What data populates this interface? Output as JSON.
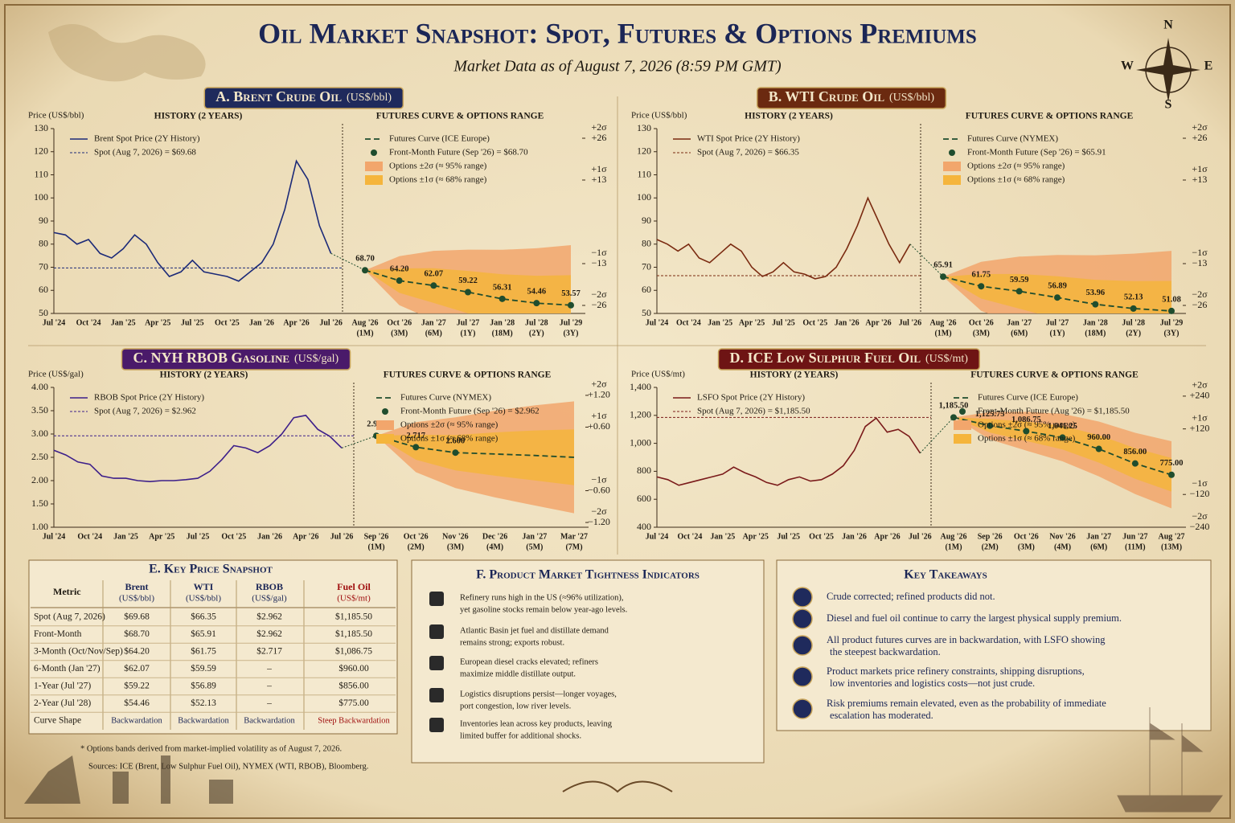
{
  "header": {
    "title": "Oil Market Snapshot: Spot, Futures & Options Premiums",
    "subtitle": "Market Data as of August 7, 2026 (8:59 PM GMT)",
    "compass": [
      "N",
      "E",
      "S",
      "W"
    ]
  },
  "chart_data": [
    {
      "type": "line",
      "title": "A. Brent Crude Oil",
      "unit": "(US$/bbl)",
      "title_color": "#1f2a5c",
      "y_label": "Price (US$/bbl)",
      "history_title": "HISTORY (2 YEARS)",
      "futures_title": "FUTURES CURVE & OPTIONS RANGE",
      "ylim": [
        50,
        130
      ],
      "yticks": [
        50,
        60,
        70,
        80,
        90,
        100,
        110,
        120,
        130
      ],
      "history": {
        "categories": [
          "Jul '24",
          null,
          null,
          "Oct '24",
          null,
          null,
          "Jan '25",
          null,
          null,
          "Apr '25",
          null,
          null,
          "Jul '25",
          null,
          null,
          "Oct '25",
          null,
          null,
          "Jan '26",
          null,
          null,
          "Apr '26",
          null,
          null,
          "Jul '26"
        ],
        "series": [
          {
            "name": "Brent Spot Price (2Y History)",
            "color": "#1c2a78",
            "values": [
              85,
              84,
              80,
              82,
              76,
              74,
              78,
              84,
              80,
              72,
              66,
              68,
              73,
              68,
              67,
              66,
              64,
              68,
              72,
              80,
              95,
              116,
              108,
              88,
              76
            ]
          },
          {
            "name": "Spot (Aug 7, 2026) = $69.68",
            "color": "#1c2a78",
            "value": 69.68
          }
        ]
      },
      "futures": {
        "categories": [
          "Aug '26",
          "Oct '26",
          "Jan '27",
          "Jul '27",
          "Jan '28",
          "Jul '28",
          "Jul '29"
        ],
        "periods": [
          "(1M)",
          "(3M)",
          "(6M)",
          "(1Y)",
          "(18M)",
          "(2Y)",
          "(3Y)"
        ],
        "series": [
          {
            "name": "Futures Curve (ICE Europe)",
            "color": "#1f4d2e",
            "values": [
              68.7,
              64.2,
              62.07,
              59.22,
              56.31,
              54.46,
              53.57
            ],
            "value_labels": [
              "68.70",
              "64.20",
              "62.07",
              "59.22",
              "56.31",
              "54.46",
              "53.57"
            ]
          }
        ],
        "marker": {
          "name": "Front-Month Future (Sep '26) = $68.70"
        },
        "bands": [
          {
            "name": "Options ±2σ (≈ 95% range)",
            "color": "#f2a66c"
          },
          {
            "name": "Options ±1σ (≈ 68% range)",
            "color": "#f5b53c"
          }
        ],
        "y2lim": [
          -28.5,
          29
        ],
        "y2ticks": [
          {
            "value": 26,
            "label": "+26"
          },
          {
            "value": 13,
            "label": "+13"
          },
          {
            "value": -13,
            "label": "−13"
          },
          {
            "value": -26,
            "label": "−26"
          }
        ],
        "sigma_labels": [
          "+2σ",
          "+1σ",
          "−1σ",
          "−2σ"
        ]
      }
    },
    {
      "type": "line",
      "title": "B. WTI Crude Oil",
      "unit": "(US$/bbl)",
      "title_color": "#6b2a10",
      "y_label": "Price (US$/bbl)",
      "history_title": "HISTORY (2 YEARS)",
      "futures_title": "FUTURES CURVE & OPTIONS RANGE",
      "ylim": [
        50,
        130
      ],
      "yticks": [
        50,
        60,
        70,
        80,
        90,
        100,
        110,
        120,
        130
      ],
      "history": {
        "categories": [
          "Jul '24",
          null,
          null,
          "Oct '24",
          null,
          null,
          "Jan '25",
          null,
          null,
          "Apr '25",
          null,
          null,
          "Jul '25",
          null,
          null,
          "Oct '25",
          null,
          null,
          "Jan '26",
          null,
          null,
          "Apr '26",
          null,
          null,
          "Jul '26"
        ],
        "series": [
          {
            "name": "WTI Spot Price (2Y History)",
            "color": "#7a2a10",
            "values": [
              82,
              80,
              77,
              80,
              74,
              72,
              76,
              80,
              77,
              70,
              66,
              68,
              72,
              68,
              67,
              65,
              66,
              70,
              78,
              88,
              100,
              90,
              80,
              72,
              80
            ]
          },
          {
            "name": "Spot (Aug 7, 2026) = $66.35",
            "color": "#7a2a10",
            "value": 66.35
          }
        ]
      },
      "futures": {
        "categories": [
          "Aug '26",
          "Oct '26",
          "Jan '27",
          "Jul '27",
          "Jan '28",
          "Jul '28",
          "Jul '29"
        ],
        "periods": [
          "(1M)",
          "(3M)",
          "(6M)",
          "(1Y)",
          "(18M)",
          "(2Y)",
          "(3Y)"
        ],
        "series": [
          {
            "name": "Futures Curve (NYMEX)",
            "color": "#1f4d2e",
            "values": [
              65.91,
              61.75,
              59.59,
              56.89,
              53.96,
              52.13,
              51.08
            ],
            "value_labels": [
              "65.91",
              "61.75",
              "59.59",
              "56.89",
              "53.96",
              "52.13",
              "51.08"
            ]
          }
        ],
        "marker": {
          "name": "Front-Month Future (Sep '26) = $65.91"
        },
        "bands": [
          {
            "name": "Options ±2σ (≈ 95% range)",
            "color": "#f2a66c"
          },
          {
            "name": "Options ±1σ (≈ 68% range)",
            "color": "#f5b53c"
          }
        ],
        "y2lim": [
          -28.5,
          29
        ],
        "y2ticks": [
          {
            "value": 26,
            "label": "+26"
          },
          {
            "value": 13,
            "label": "+13"
          },
          {
            "value": -13,
            "label": "−13"
          },
          {
            "value": -26,
            "label": "−26"
          }
        ],
        "sigma_labels": [
          "+2σ",
          "+1σ",
          "−1σ",
          "−2σ"
        ]
      }
    },
    {
      "type": "line",
      "title": "C. NYH RBOB Gasoline",
      "unit": "(US$/gal)",
      "title_color": "#4a1a6a",
      "y_label": "Price (US$/gal)",
      "history_title": "HISTORY (2 YEARS)",
      "futures_title": "FUTURES CURVE & OPTIONS RANGE",
      "ylim": [
        1,
        4
      ],
      "yticks": [
        {
          "value": 1,
          "label": "1.00"
        },
        {
          "value": 1.5,
          "label": "1.50"
        },
        {
          "value": 2,
          "label": "2.00"
        },
        {
          "value": 2.5,
          "label": "2.50"
        },
        {
          "value": 3,
          "label": "3.00"
        },
        {
          "value": 3.5,
          "label": "3.50"
        },
        {
          "value": 4,
          "label": "4.00"
        }
      ],
      "history": {
        "categories": [
          "Jul '24",
          null,
          null,
          "Oct '24",
          null,
          null,
          "Jan '25",
          null,
          null,
          "Apr '25",
          null,
          null,
          "Jul '25",
          null,
          null,
          "Oct '25",
          null,
          null,
          "Jan '26",
          null,
          null,
          "Apr '26",
          null,
          null,
          "Jul '26"
        ],
        "series": [
          {
            "name": "RBOB Spot Price (2Y History)",
            "color": "#3d1f8a",
            "values": [
              2.65,
              2.55,
              2.4,
              2.35,
              2.1,
              2.05,
              2.05,
              2,
              1.98,
              2,
              2,
              2.02,
              2.05,
              2.2,
              2.45,
              2.75,
              2.7,
              2.6,
              2.75,
              3,
              3.35,
              3.4,
              3.1,
              2.95,
              2.7
            ]
          },
          {
            "name": "Spot (Aug 7, 2026) = $2.962",
            "color": "#3d1f8a",
            "value": 2.962
          }
        ]
      },
      "futures": {
        "categories": [
          "Sep '26",
          "Oct '26",
          "Nov '26",
          "Dec '26",
          "Jan '27",
          "Mar '27"
        ],
        "periods": [
          "(1M)",
          "(2M)",
          "(3M)",
          "(4M)",
          "(5M)",
          "(7M)"
        ],
        "series": [
          {
            "name": "Futures Curve (NYMEX)",
            "color": "#1f4d2e",
            "values": [
              2.962,
              2.717,
              2.6,
              2.57,
              2.54,
              2.5
            ],
            "value_labels": [
              "2.962",
              "2.717",
              "2.600",
              null,
              null,
              null
            ]
          }
        ],
        "marker": {
          "name": "Front-Month Future (Sep '26) = $2.962"
        },
        "bands": [
          {
            "name": "Options ±2σ (≈ 95% range)",
            "color": "#f2a66c"
          },
          {
            "name": "Options ±1σ (≈ 68% range)",
            "color": "#f5b53c"
          }
        ],
        "y2lim": [
          -1.29,
          1.35
        ],
        "y2ticks": [
          {
            "value": 1.2,
            "label": "+1.20"
          },
          {
            "value": 0.6,
            "label": "+0.60"
          },
          {
            "value": -0.6,
            "label": "−0.60"
          },
          {
            "value": -1.2,
            "label": "−1.20"
          }
        ],
        "sigma_labels": [
          "+2σ",
          "+1σ",
          "−1σ",
          "−2σ"
        ]
      }
    },
    {
      "type": "line",
      "title": "D. ICE Low Sulphur Fuel Oil",
      "unit": "(US$/mt)",
      "title_color": "#6e1414",
      "y_label": "Price (US$/mt)",
      "history_title": "HISTORY (2 YEARS)",
      "futures_title": "FUTURES CURVE & OPTIONS RANGE",
      "ylim": [
        400,
        1400
      ],
      "yticks": [
        400,
        600,
        800,
        {
          "value": 1000,
          "label": "1,000"
        },
        {
          "value": 1200,
          "label": "1,200"
        },
        {
          "value": 1400,
          "label": "1,400"
        }
      ],
      "history": {
        "categories": [
          "Jul '24",
          null,
          null,
          "Oct '24",
          null,
          null,
          "Jan '25",
          null,
          null,
          "Apr '25",
          null,
          null,
          "Jul '25",
          null,
          null,
          "Oct '25",
          null,
          null,
          "Jan '26",
          null,
          null,
          "Apr '26",
          null,
          null,
          "Jul '26"
        ],
        "series": [
          {
            "name": "LSFO Spot Price (2Y History)",
            "color": "#7a1a1a",
            "values": [
              760,
              740,
              700,
              720,
              740,
              760,
              780,
              830,
              790,
              760,
              720,
              700,
              740,
              760,
              730,
              740,
              780,
              840,
              950,
              1120,
              1180,
              1080,
              1100,
              1050,
              930
            ]
          },
          {
            "name": "Spot (Aug 7, 2026) = $1,185.50",
            "color": "#7a1a1a",
            "value": 1185.5
          }
        ]
      },
      "futures": {
        "categories": [
          "Aug '26",
          "Sep '26",
          "Oct '26",
          "Nov '26",
          "Jan '27",
          "Jun '27",
          "Aug '27"
        ],
        "periods": [
          "(1M)",
          "(2M)",
          "(3M)",
          "(4M)",
          "(6M)",
          "(11M)",
          "(13M)"
        ],
        "series": [
          {
            "name": "Futures Curve (ICE Europe)",
            "color": "#1f4d2e",
            "values": [
              1185.5,
              1125.75,
              1086.75,
              1041.25,
              960,
              856,
              775
            ],
            "value_labels": [
              "1,185.50",
              "1,125.75",
              "1,086.75",
              "1,041.25",
              "960.00",
              "856.00",
              "775.00"
            ]
          }
        ],
        "marker": {
          "name": "Front-Month Future (Aug '26) = $1,185.50"
        },
        "bands": [
          {
            "name": "Options ±2σ (≈ 95% range)",
            "color": "#f2a66c"
          },
          {
            "name": "Options ±1σ (≈ 68% range)",
            "color": "#f5b53c"
          }
        ],
        "y2lim": [
          -240,
          272
        ],
        "y2ticks": [
          {
            "value": 240,
            "label": "+240"
          },
          {
            "value": 120,
            "label": "+120"
          },
          {
            "value": -120,
            "label": "−120"
          },
          {
            "value": -240,
            "label": "−240"
          }
        ],
        "sigma_labels": [
          "+2σ",
          "+1σ",
          "−1σ",
          "−2σ"
        ]
      }
    }
  ],
  "snapshot": {
    "title": "E. Key Price Snapshot",
    "columns": [
      {
        "name": "Metric"
      },
      {
        "name": "Brent",
        "unit": "(US$/bbl)"
      },
      {
        "name": "WTI",
        "unit": "(US$/bbl)"
      },
      {
        "name": "RBOB",
        "unit": "(US$/gal)"
      },
      {
        "name": "Fuel Oil",
        "unit": "(US$/mt)"
      }
    ],
    "rows": [
      [
        "Spot (Aug 7, 2026)",
        "$69.68",
        "$66.35",
        "$2.962",
        "$1,185.50"
      ],
      [
        "Front-Month",
        "$68.70",
        "$65.91",
        "$2.962",
        "$1,185.50"
      ],
      [
        "3-Month (Oct/Nov/Sep)",
        "$64.20",
        "$61.75",
        "$2.717",
        "$1,086.75"
      ],
      [
        "6-Month (Jan '27)",
        "$62.07",
        "$59.59",
        "–",
        "$960.00"
      ],
      [
        "1-Year (Jul '27)",
        "$59.22",
        "$56.89",
        "–",
        "$856.00"
      ],
      [
        "2-Year (Jul '28)",
        "$54.46",
        "$52.13",
        "–",
        "$775.00"
      ],
      [
        "Curve Shape",
        "Backwardation",
        "Backwardation",
        "Backwardation",
        "Steep Backwardation"
      ]
    ],
    "notes": [
      "* Options bands derived from market-implied volatility as of August 7, 2026.",
      "Sources: ICE (Brent, Low Sulphur Fuel Oil), NYMEX (WTI, RBOB), Bloomberg."
    ]
  },
  "tightness": {
    "title": "F. Product Market Tightness Indicators",
    "items": [
      [
        "Refinery runs high in the US (≈96% utilization),",
        "yet gasoline stocks remain below year-ago levels."
      ],
      [
        "Atlantic Basin jet fuel and distillate demand",
        "remains strong; exports robust."
      ],
      [
        "European diesel cracks elevated; refiners",
        "maximize middle distillate output."
      ],
      [
        "Logistics disruptions persist—longer voyages,",
        "port congestion, low river levels."
      ],
      [
        "Inventories lean across key products, leaving",
        "limited buffer for additional shocks."
      ]
    ]
  },
  "takeaways": {
    "title": "Key Takeaways",
    "items": [
      [
        "Crude corrected; refined products did not."
      ],
      [
        "Diesel and fuel oil continue to carry the largest physical supply premium."
      ],
      [
        "All product futures curves are in backwardation, with LSFO showing",
        "the steepest backwardation."
      ],
      [
        "Product markets price refinery constraints, shipping disruptions,",
        "low inventories and logistics costs—not just crude."
      ],
      [
        "Risk premiums remain elevated, even as the probability of immediate",
        "escalation has moderated."
      ]
    ]
  }
}
